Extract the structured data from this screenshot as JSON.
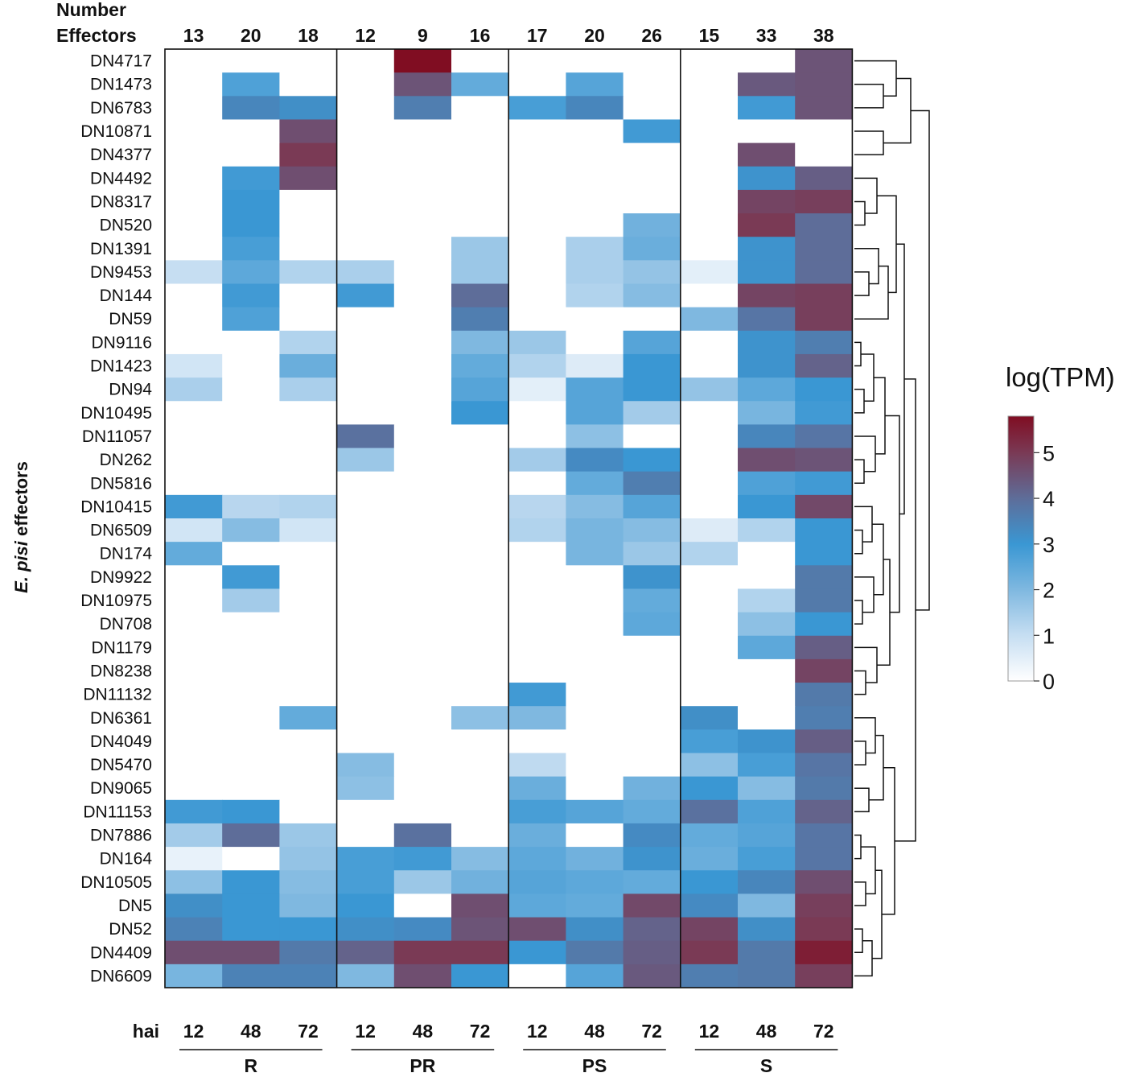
{
  "chart_data": {
    "type": "heatmap",
    "header": {
      "line1": "Number",
      "line2": "Effectors"
    },
    "effector_counts": [
      "13",
      "20",
      "18",
      "12",
      "9",
      "16",
      "17",
      "20",
      "26",
      "15",
      "33",
      "38"
    ],
    "columns": [
      "12",
      "48",
      "72",
      "12",
      "48",
      "72",
      "12",
      "48",
      "72",
      "12",
      "48",
      "72"
    ],
    "x_axis_label": "hai",
    "groups": [
      {
        "name": "R",
        "start": 0,
        "end": 2
      },
      {
        "name": "PR",
        "start": 3,
        "end": 5
      },
      {
        "name": "PS",
        "start": 6,
        "end": 8
      },
      {
        "name": "S",
        "start": 9,
        "end": 11
      }
    ],
    "ylabel_italic": "E. pisi",
    "ylabel_rest": " effectors",
    "legend": {
      "title": "log(TPM)",
      "min": 0,
      "max": 5.8,
      "ticks": [
        "0",
        "1",
        "2",
        "3",
        "4",
        "5"
      ]
    },
    "colorscale": [
      {
        "v": 0,
        "c": "#ffffff"
      },
      {
        "v": 1,
        "c": "#c6def2"
      },
      {
        "v": 2,
        "c": "#7fb8e0"
      },
      {
        "v": 3,
        "c": "#3a97d3"
      },
      {
        "v": 4,
        "c": "#5e6d99"
      },
      {
        "v": 5,
        "c": "#7a3a55"
      },
      {
        "v": 5.8,
        "c": "#800d22"
      }
    ],
    "rows": [
      "DN4717",
      "DN1473",
      "DN6783",
      "DN10871",
      "DN4377",
      "DN4492",
      "DN8317",
      "DN520",
      "DN1391",
      "DN9453",
      "DN144",
      "DN59",
      "DN9116",
      "DN1423",
      "DN94",
      "DN10495",
      "DN11057",
      "DN262",
      "DN5816",
      "DN10415",
      "DN6509",
      "DN174",
      "DN9922",
      "DN10975",
      "DN708",
      "DN1179",
      "DN8238",
      "DN11132",
      "DN6361",
      "DN4049",
      "DN5470",
      "DN9065",
      "DN11153",
      "DN7886",
      "DN164",
      "DN10505",
      "DN5",
      "DN52",
      "DN4409",
      "DN6609"
    ],
    "values": [
      [
        0,
        0,
        0,
        0,
        5.8,
        0,
        0,
        0,
        0,
        0,
        0,
        4.5
      ],
      [
        0,
        2.7,
        0,
        0,
        4.5,
        2.4,
        0,
        2.6,
        0,
        0,
        4.4,
        4.5
      ],
      [
        0,
        3.4,
        3.2,
        0,
        3.6,
        0,
        2.8,
        3.4,
        0,
        0,
        2.9,
        4.5
      ],
      [
        0,
        0,
        4.6,
        0,
        0,
        0,
        0,
        0,
        2.9,
        0,
        0,
        0
      ],
      [
        0,
        0,
        5.0,
        0,
        0,
        0,
        0,
        0,
        0,
        0,
        4.6,
        0
      ],
      [
        0,
        2.9,
        4.6,
        0,
        0,
        0,
        0,
        0,
        0,
        0,
        3.1,
        4.3
      ],
      [
        0,
        3.0,
        0,
        0,
        0,
        0,
        0,
        0,
        0,
        0,
        4.8,
        4.9
      ],
      [
        0,
        3.0,
        0,
        0,
        0,
        0,
        0,
        0,
        2.2,
        0,
        5.0,
        4.0
      ],
      [
        0,
        2.8,
        0,
        0,
        0,
        1.6,
        0,
        1.4,
        2.3,
        0,
        3.1,
        4.0
      ],
      [
        1.0,
        2.5,
        1.3,
        1.4,
        0,
        1.6,
        0,
        1.4,
        1.7,
        0.5,
        3.1,
        4.0
      ],
      [
        0,
        2.9,
        0,
        2.9,
        0,
        4.0,
        0,
        1.3,
        1.9,
        0,
        4.8,
        4.9
      ],
      [
        0,
        2.7,
        0,
        0,
        0,
        3.6,
        0,
        0,
        0,
        2.0,
        3.8,
        4.9
      ],
      [
        0,
        0,
        1.3,
        0,
        0,
        2.0,
        1.6,
        0,
        2.6,
        0,
        3.1,
        3.6
      ],
      [
        0.8,
        0,
        2.3,
        0,
        0,
        2.4,
        1.3,
        0.6,
        3.0,
        0,
        3.1,
        4.2
      ],
      [
        1.4,
        0,
        1.4,
        0,
        0,
        2.6,
        0.5,
        2.6,
        3.0,
        1.7,
        2.5,
        3.0
      ],
      [
        0,
        0,
        0,
        0,
        0,
        3.0,
        0,
        2.6,
        1.5,
        0,
        2.1,
        2.9
      ],
      [
        0,
        0,
        0,
        3.9,
        0,
        0,
        0,
        1.8,
        0,
        0,
        3.4,
        3.8
      ],
      [
        0,
        0,
        0,
        1.6,
        0,
        0,
        1.5,
        3.3,
        3.0,
        0,
        4.6,
        4.5
      ],
      [
        0,
        0,
        0,
        0,
        0,
        0,
        0,
        2.4,
        3.6,
        0,
        2.7,
        2.9
      ],
      [
        2.9,
        1.2,
        1.3,
        0,
        0,
        0,
        1.2,
        1.9,
        2.6,
        0,
        3.0,
        4.7
      ],
      [
        0.8,
        1.9,
        0.8,
        0,
        0,
        0,
        1.3,
        2.1,
        1.9,
        0.6,
        1.3,
        3.0
      ],
      [
        2.4,
        0,
        0,
        0,
        0,
        0,
        0,
        2.1,
        1.6,
        1.3,
        0,
        3.0
      ],
      [
        0,
        2.9,
        0,
        0,
        0,
        0,
        0,
        0,
        3.1,
        0,
        0,
        3.7
      ],
      [
        0,
        1.5,
        0,
        0,
        0,
        0,
        0,
        0,
        2.4,
        0,
        1.3,
        3.7
      ],
      [
        0,
        0,
        0,
        0,
        0,
        0,
        0,
        0,
        2.5,
        0,
        1.8,
        3.0
      ],
      [
        0,
        0,
        0,
        0,
        0,
        0,
        0,
        0,
        0,
        0,
        2.5,
        4.3
      ],
      [
        0,
        0,
        0,
        0,
        0,
        0,
        0,
        0,
        0,
        0,
        0,
        4.8
      ],
      [
        0,
        0,
        0,
        0,
        0,
        0,
        2.9,
        0,
        0,
        0,
        0,
        3.7
      ],
      [
        0,
        0,
        2.4,
        0,
        0,
        1.8,
        2.0,
        0,
        0,
        3.2,
        0,
        3.6
      ],
      [
        0,
        0,
        0,
        0,
        0,
        0,
        0,
        0,
        0,
        2.8,
        3.1,
        4.3
      ],
      [
        0,
        0,
        0,
        1.9,
        0,
        0,
        1.1,
        0,
        0,
        1.8,
        2.8,
        3.8
      ],
      [
        0,
        0,
        0,
        1.8,
        0,
        0,
        2.3,
        0,
        2.2,
        3.0,
        1.9,
        3.7
      ],
      [
        2.9,
        3.0,
        0,
        0,
        0,
        0,
        2.8,
        2.6,
        2.4,
        3.9,
        2.7,
        4.2
      ],
      [
        1.5,
        4.0,
        1.6,
        0,
        3.9,
        0,
        2.3,
        0,
        3.3,
        2.4,
        2.6,
        3.8
      ],
      [
        0.4,
        0,
        1.7,
        2.8,
        2.9,
        1.9,
        2.5,
        2.2,
        3.1,
        2.3,
        2.8,
        3.8
      ],
      [
        1.8,
        3.0,
        1.9,
        2.8,
        1.6,
        2.2,
        2.6,
        2.5,
        2.4,
        3.0,
        3.4,
        4.6
      ],
      [
        3.2,
        3.0,
        2.0,
        3.0,
        0,
        4.6,
        2.5,
        2.4,
        4.7,
        3.3,
        2.0,
        4.9
      ],
      [
        3.5,
        3.0,
        3.0,
        3.2,
        3.3,
        4.5,
        4.6,
        3.2,
        4.2,
        4.8,
        3.2,
        5.0
      ],
      [
        4.6,
        4.6,
        3.7,
        4.2,
        5.0,
        5.0,
        3.0,
        3.7,
        4.3,
        5.0,
        3.7,
        5.5
      ],
      [
        2.1,
        3.5,
        3.5,
        2.0,
        4.6,
        3.0,
        0,
        2.6,
        4.4,
        3.6,
        3.7,
        4.9
      ]
    ]
  }
}
